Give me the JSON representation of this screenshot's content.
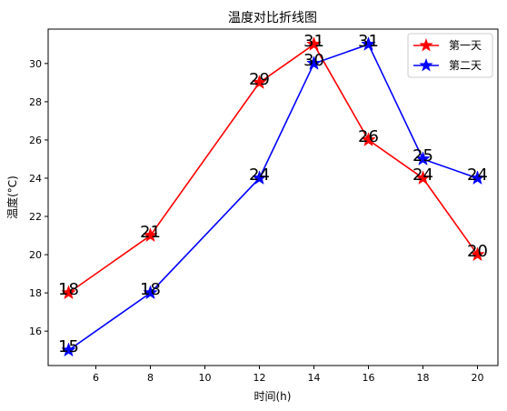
{
  "chart_data": {
    "type": "line",
    "title": "温度对比折线图",
    "xlabel": "时间(h)",
    "ylabel": "温度(°C)",
    "x": [
      5,
      8,
      12,
      14,
      16,
      18,
      20
    ],
    "xlim": [
      4.25,
      20.75
    ],
    "ylim": [
      14.2,
      31.8
    ],
    "xticks": [
      6,
      8,
      10,
      12,
      14,
      16,
      18,
      20
    ],
    "yticks": [
      16,
      18,
      20,
      22,
      24,
      26,
      28,
      30
    ],
    "grid": false,
    "legend_position": "top-right",
    "series": [
      {
        "name": "第一天",
        "color": "#ff0000",
        "marker": "star",
        "values": [
          18,
          21,
          29,
          31,
          26,
          24,
          20
        ]
      },
      {
        "name": "第二天",
        "color": "#0000ff",
        "marker": "star",
        "values": [
          15,
          18,
          24,
          30,
          31,
          25,
          24
        ]
      }
    ]
  }
}
